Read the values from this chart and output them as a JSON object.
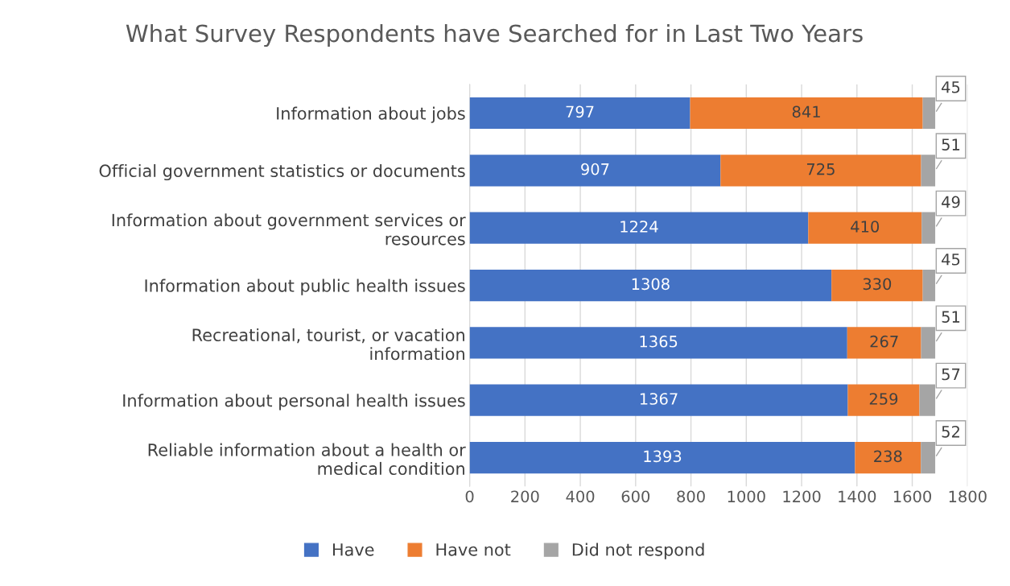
{
  "chart_data": {
    "type": "bar",
    "orientation": "horizontal",
    "stacked": true,
    "title": "What Survey Respondents have Searched for in Last Two Years",
    "categories": [
      "Information about jobs",
      "Official government statistics or documents",
      "Information about government services or resources",
      "Information about public health issues",
      "Recreational, tourist, or vacation information",
      "Information about personal health issues",
      "Reliable information about a health or medical condition"
    ],
    "series": [
      {
        "name": "Have",
        "color": "#4472c4",
        "values": [
          797,
          907,
          1224,
          1308,
          1365,
          1367,
          1393
        ]
      },
      {
        "name": "Have not",
        "color": "#ed7d31",
        "values": [
          841,
          725,
          410,
          330,
          267,
          259,
          238
        ]
      },
      {
        "name": "Did not respond",
        "color": "#a5a5a5",
        "values": [
          45,
          51,
          49,
          45,
          51,
          57,
          52
        ]
      }
    ],
    "xlim": [
      0,
      1800
    ],
    "xticks": [
      0,
      200,
      400,
      600,
      800,
      1000,
      1200,
      1400,
      1600,
      1800
    ],
    "grid": "x",
    "legend": "bottom",
    "data_labels": true
  }
}
